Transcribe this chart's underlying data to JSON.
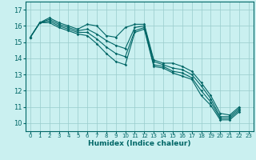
{
  "title": "",
  "xlabel": "Humidex (Indice chaleur)",
  "ylabel": "",
  "bg_color": "#caf0f0",
  "grid_color": "#99cccc",
  "line_color": "#006666",
  "spine_color": "#336666",
  "xlim": [
    -0.5,
    23.5
  ],
  "ylim": [
    9.5,
    17.5
  ],
  "yticks": [
    10,
    11,
    12,
    13,
    14,
    15,
    16,
    17
  ],
  "xticks": [
    0,
    1,
    2,
    3,
    4,
    5,
    6,
    7,
    8,
    9,
    10,
    11,
    12,
    13,
    14,
    15,
    16,
    17,
    18,
    19,
    20,
    21,
    22,
    23
  ],
  "series": [
    [
      15.3,
      16.2,
      16.5,
      16.2,
      16.0,
      15.8,
      16.1,
      16.0,
      15.4,
      15.3,
      15.9,
      16.1,
      16.1,
      13.9,
      13.7,
      13.7,
      13.5,
      13.2,
      12.5,
      11.7,
      10.6,
      10.5,
      11.0
    ],
    [
      15.3,
      16.2,
      16.4,
      16.1,
      15.9,
      15.7,
      15.8,
      15.5,
      15.1,
      14.8,
      14.6,
      15.9,
      16.0,
      13.8,
      13.6,
      13.4,
      13.3,
      13.0,
      12.3,
      11.5,
      10.4,
      10.4,
      10.9
    ],
    [
      15.3,
      16.2,
      16.3,
      16.0,
      15.8,
      15.6,
      15.6,
      15.2,
      14.7,
      14.3,
      14.1,
      15.7,
      15.9,
      13.6,
      13.5,
      13.2,
      13.1,
      12.8,
      12.0,
      11.3,
      10.3,
      10.3,
      10.8
    ],
    [
      15.3,
      16.2,
      16.2,
      15.9,
      15.7,
      15.5,
      15.4,
      14.9,
      14.3,
      13.8,
      13.6,
      15.6,
      15.8,
      13.5,
      13.4,
      13.1,
      12.9,
      12.7,
      11.7,
      11.1,
      10.2,
      10.2,
      10.7
    ]
  ]
}
